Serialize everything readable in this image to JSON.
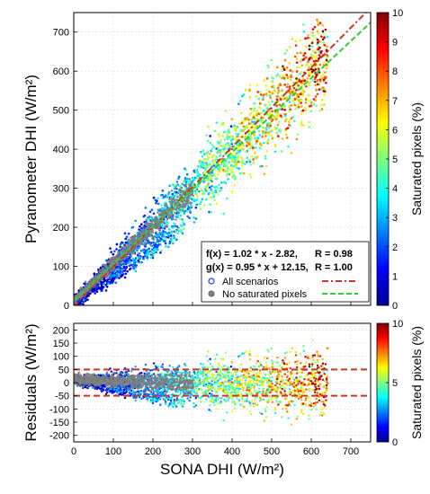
{
  "chart_data": [
    {
      "type": "scatter",
      "panel": "main",
      "xlabel": "SONA DHI (W/m²)",
      "ylabel": "Pyranometer DHI (W/m²)",
      "xlim": [
        0,
        750
      ],
      "ylim": [
        0,
        750
      ],
      "xticks": [
        0,
        100,
        200,
        300,
        400,
        500,
        600,
        700
      ],
      "yticks": [
        0,
        100,
        200,
        300,
        400,
        500,
        600,
        700
      ],
      "grid": true,
      "colorbar": {
        "label": "Saturated pixels (%)",
        "range": [
          0,
          10
        ],
        "ticks": [
          0,
          1,
          2,
          3,
          4,
          5,
          6,
          7,
          8,
          9,
          10
        ],
        "colormap": "jet"
      },
      "fits": [
        {
          "name": "f",
          "equation": "f(x) = 1.02 * x -  2.82,",
          "r_text": "R = 0.98",
          "slope": 1.02,
          "intercept": -2.82,
          "color": "#c0392b",
          "dash": "dash-dot"
        },
        {
          "name": "g",
          "equation": "g(x) = 0.95 * x + 12.15,",
          "r_text": "R = 1.00",
          "slope": 0.95,
          "intercept": 12.15,
          "color": "#33cc33",
          "dash": "dashed"
        }
      ],
      "legend": {
        "placement": "bottom-right",
        "entries": [
          {
            "label": "All scenarios",
            "marker": "open-circle",
            "line": "f"
          },
          {
            "label": "No saturated pixels",
            "marker": "filled-gray-circle",
            "line": "g"
          }
        ]
      }
    },
    {
      "type": "scatter",
      "panel": "residuals",
      "xlabel": "SONA DHI (W/m²)",
      "ylabel": "Residuals (W/m²)",
      "xlim": [
        0,
        750
      ],
      "ylim": [
        -225,
        225
      ],
      "xticks": [
        0,
        100,
        200,
        300,
        400,
        500,
        600,
        700
      ],
      "yticks": [
        200,
        150,
        100,
        50,
        0,
        -50,
        -100,
        -150,
        -200
      ],
      "reference_lines": [
        50,
        -50
      ],
      "reference_line_color": "#c0392b",
      "grid": true,
      "colorbar": {
        "label": "Saturated pixels (%)",
        "range": [
          0,
          10
        ],
        "ticks": [
          0,
          5,
          10
        ],
        "colormap": "jet"
      }
    }
  ]
}
